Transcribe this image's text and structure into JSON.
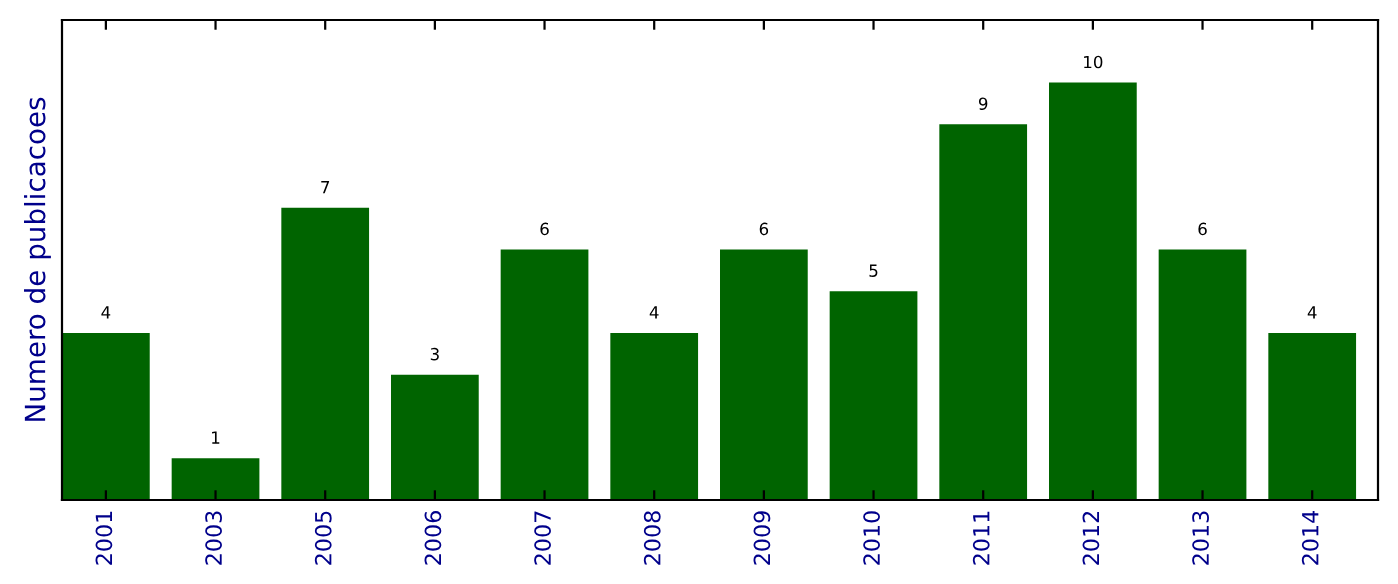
{
  "chart_data": {
    "type": "bar",
    "ylabel": "Numero de publicacoes",
    "categories": [
      "2001",
      "2003",
      "2005",
      "2006",
      "2007",
      "2008",
      "2009",
      "2010",
      "2011",
      "2012",
      "2013",
      "2014"
    ],
    "values": [
      4,
      1,
      7,
      3,
      6,
      4,
      6,
      5,
      9,
      10,
      6,
      4
    ],
    "color": "#006400",
    "data_labels": true,
    "relative": false,
    "ylim": [
      0,
      11.5
    ],
    "grid": false
  }
}
